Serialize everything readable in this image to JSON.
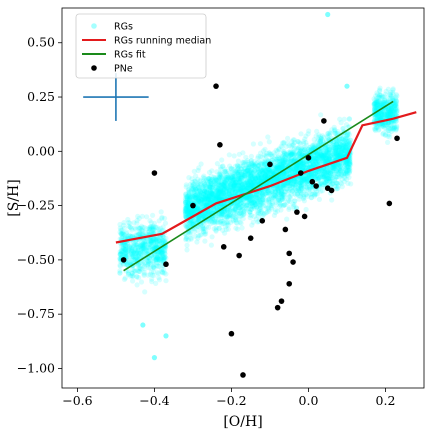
{
  "chart_data": {
    "type": "scatter",
    "xlabel": "[O/H]",
    "ylabel": "[S/H]",
    "xlim": [
      -0.64,
      0.3
    ],
    "ylim": [
      -1.09,
      0.66
    ],
    "xticks": [
      -0.6,
      -0.4,
      -0.2,
      0.0,
      0.2
    ],
    "xtick_labels": [
      "−0.6",
      "−0.4",
      "−0.2",
      "0.0",
      "0.2"
    ],
    "yticks": [
      -1.0,
      -0.75,
      -0.5,
      -0.25,
      0.0,
      0.25,
      0.5
    ],
    "ytick_labels": [
      "−1.00",
      "−0.75",
      "−0.50",
      "−0.25",
      "0.00",
      "0.25",
      "0.50"
    ],
    "grid": false,
    "legend": {
      "placement": "top-left",
      "entries": [
        {
          "label": "RGs",
          "kind": "marker",
          "color": "#00ffff"
        },
        {
          "label": "RGs running median",
          "kind": "line",
          "color": "#e31a1c"
        },
        {
          "label": "RGs fit",
          "kind": "line",
          "color": "#1a8a1a"
        },
        {
          "label": "PNe",
          "kind": "marker",
          "color": "#000000"
        }
      ]
    },
    "error_cross": {
      "x": -0.5,
      "y": 0.25,
      "xerr": 0.085,
      "yerr": 0.11,
      "color": "#1f77b4"
    },
    "rgs_clouds": [
      {
        "x_min": -0.49,
        "x_max": -0.37,
        "y_center": -0.45,
        "y_spread": 0.13,
        "count": 700
      },
      {
        "x_min": -0.32,
        "x_max": 0.11,
        "y_center_at_xmin": -0.27,
        "y_slope": 0.62,
        "y_spread": 0.13,
        "count": 4200
      },
      {
        "x_min": 0.17,
        "x_max": 0.23,
        "y_center": 0.18,
        "y_spread": 0.09,
        "count": 450
      }
    ],
    "rgs_outliers": [
      {
        "x": -0.37,
        "y": -0.85
      },
      {
        "x": -0.4,
        "y": -0.95
      },
      {
        "x": 0.05,
        "y": 0.63
      },
      {
        "x": -0.43,
        "y": -0.8
      },
      {
        "x": 0.1,
        "y": 0.3
      }
    ],
    "series": [
      {
        "name": "RGs running median",
        "color": "#e31a1c",
        "x": [
          -0.5,
          -0.38,
          -0.3,
          -0.24,
          -0.1,
          0.0,
          0.1,
          0.14,
          0.22,
          0.28
        ],
        "y": [
          -0.42,
          -0.38,
          -0.3,
          -0.24,
          -0.16,
          -0.09,
          -0.03,
          0.12,
          0.15,
          0.18
        ]
      },
      {
        "name": "RGs fit",
        "color": "#1a8a1a",
        "x": [
          -0.48,
          0.22
        ],
        "y": [
          -0.55,
          0.23
        ]
      },
      {
        "name": "PNe",
        "color": "#000000",
        "x": [
          -0.48,
          -0.4,
          -0.37,
          -0.3,
          -0.24,
          -0.23,
          -0.22,
          -0.2,
          -0.18,
          -0.17,
          -0.15,
          -0.12,
          -0.1,
          -0.08,
          -0.07,
          -0.06,
          -0.05,
          -0.05,
          -0.04,
          -0.03,
          -0.02,
          -0.01,
          0.0,
          0.01,
          0.02,
          0.04,
          0.05,
          0.06,
          0.21,
          0.23
        ],
        "y": [
          -0.5,
          -0.1,
          -0.52,
          -0.25,
          0.3,
          0.03,
          -0.44,
          -0.84,
          -0.48,
          -1.03,
          -0.4,
          -0.32,
          -0.06,
          -0.72,
          -0.69,
          -0.36,
          -0.47,
          -0.61,
          -0.51,
          -0.28,
          -0.1,
          -0.3,
          -0.03,
          -0.14,
          -0.16,
          0.14,
          -0.17,
          -0.18,
          -0.24,
          0.06
        ]
      }
    ]
  }
}
